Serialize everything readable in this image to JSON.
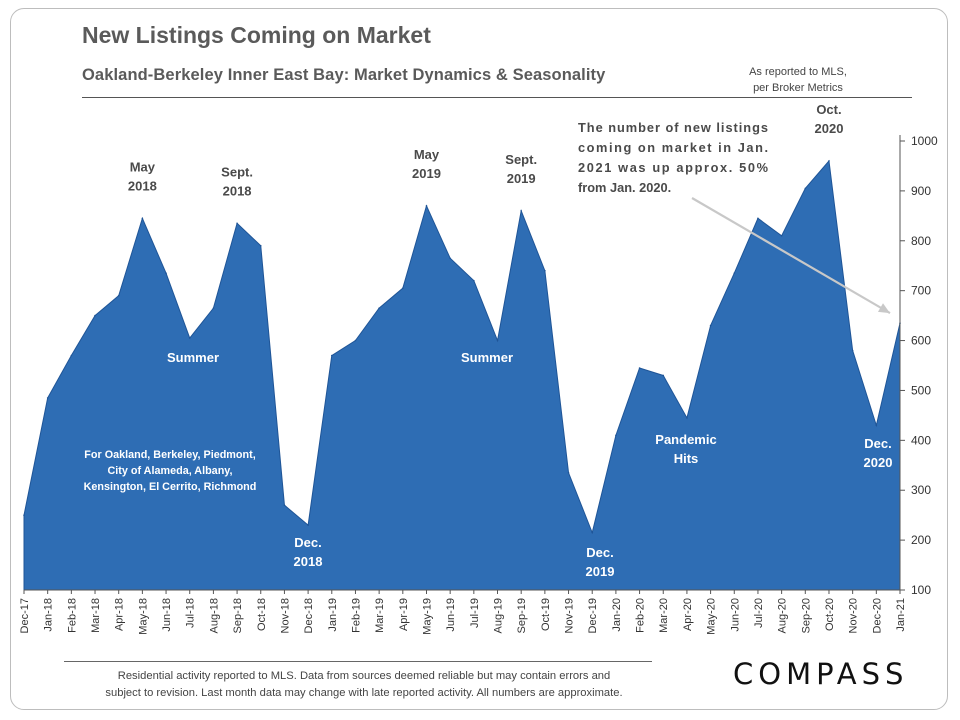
{
  "title": "New Listings Coming on Market",
  "subtitle": "Oakland-Berkeley  Inner East Bay: Market Dynamics & Seasonality",
  "source_line1": "As reported to MLS,",
  "source_line2": "per Broker Metrics",
  "footnote_line1": "Residential activity reported to MLS. Data from sources deemed reliable but may contain errors and",
  "footnote_line2": "subject to revision. Last month data may change with late reported activity. All numbers are approximate.",
  "logo": "COMPASS",
  "colors": {
    "area": "#2e6db4",
    "accent_text": "#ffffff",
    "note_text": "#222222",
    "arrow": "#c8c8c8"
  },
  "chart_data": {
    "type": "area",
    "title": "New Listings Coming on Market",
    "xlabel": "",
    "ylabel": "",
    "ylim": [
      100,
      1000
    ],
    "yticks": [
      100,
      200,
      300,
      400,
      500,
      600,
      700,
      800,
      900,
      1000
    ],
    "y_axis_side": "right",
    "grid": false,
    "categories": [
      "Dec-17",
      "Jan-18",
      "Feb-18",
      "Mar-18",
      "Apr-18",
      "May-18",
      "Jun-18",
      "Jul-18",
      "Aug-18",
      "Sep-18",
      "Oct-18",
      "Nov-18",
      "Dec-18",
      "Jan-19",
      "Feb-19",
      "Mar-19",
      "Apr-19",
      "May-19",
      "Jun-19",
      "Jul-19",
      "Aug-19",
      "Sep-19",
      "Oct-19",
      "Nov-19",
      "Dec-19",
      "Jan-20",
      "Feb-20",
      "Mar-20",
      "Apr-20",
      "May-20",
      "Jun-20",
      "Jul-20",
      "Aug-20",
      "Sep-20",
      "Oct-20",
      "Nov-20",
      "Dec-20",
      "Jan-21"
    ],
    "values": [
      250,
      485,
      570,
      650,
      690,
      845,
      735,
      605,
      665,
      835,
      790,
      270,
      230,
      570,
      600,
      665,
      705,
      870,
      765,
      720,
      600,
      860,
      740,
      335,
      215,
      410,
      545,
      530,
      445,
      630,
      735,
      845,
      810,
      905,
      960,
      580,
      430,
      635
    ],
    "annotations": [
      {
        "lines": [
          "May",
          "2018"
        ],
        "category": "May-18",
        "color": "dark"
      },
      {
        "lines": [
          "Sept.",
          "2018"
        ],
        "category": "Sep-18",
        "color": "dark"
      },
      {
        "lines": [
          "May",
          "2019"
        ],
        "category": "May-19",
        "color": "dark"
      },
      {
        "lines": [
          "Sept.",
          "2019"
        ],
        "category": "Sep-19",
        "color": "dark"
      },
      {
        "lines": [
          "Oct.",
          "2020"
        ],
        "category": "Oct-20",
        "color": "dark"
      },
      {
        "lines": [
          "Summer"
        ],
        "category": "Jul-18",
        "color": "light"
      },
      {
        "lines": [
          "Summer"
        ],
        "category": "Jul-19",
        "color": "light"
      },
      {
        "lines": [
          "Dec.",
          "2018"
        ],
        "category": "Dec-18",
        "color": "light"
      },
      {
        "lines": [
          "Dec.",
          "2019"
        ],
        "category": "Dec-19",
        "color": "light"
      },
      {
        "lines": [
          "Dec.",
          "2020"
        ],
        "category": "Dec-20",
        "color": "light"
      },
      {
        "lines": [
          "Pandemic",
          "Hits"
        ],
        "category": "Apr-20",
        "color": "light"
      },
      {
        "lines": [
          "For Oakland,  Berkeley, Piedmont,",
          "City of Alameda,  Albany,",
          "Kensington,  El Cerrito, Richmond"
        ],
        "category": "Apr-18",
        "color": "light"
      },
      {
        "lines": [
          "The number of new listings",
          "coming on market in Jan.",
          "2021 was up approx. 50%",
          "from Jan. 2020."
        ],
        "category": "Jun-20",
        "color": "dark"
      }
    ]
  }
}
